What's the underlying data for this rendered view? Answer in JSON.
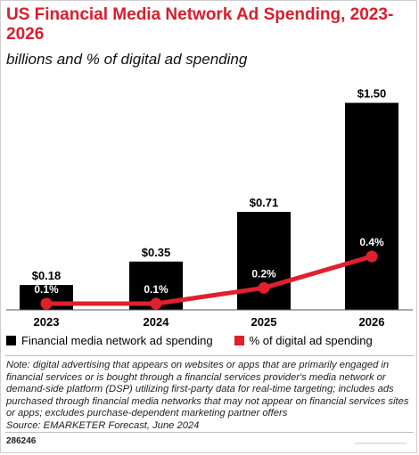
{
  "title": "US Financial Media Network Ad Spending, 2023-2026",
  "subtitle": "billions and % of digital ad spending",
  "chart_data": {
    "type": "bar",
    "categories": [
      "2023",
      "2024",
      "2025",
      "2026"
    ],
    "series": [
      {
        "name": "Financial media network ad spending",
        "type": "bar",
        "values": [
          0.18,
          0.35,
          0.71,
          1.5
        ],
        "labels": [
          "$0.18",
          "$0.35",
          "$0.71",
          "$1.50"
        ],
        "color": "#000000"
      },
      {
        "name": "% of digital ad spending",
        "type": "line",
        "values": [
          0.1,
          0.1,
          0.2,
          0.4
        ],
        "labels": [
          "0.1%",
          "0.1%",
          "0.2%",
          "0.4%"
        ],
        "color": "#e0202e"
      }
    ],
    "ylim": [
      0,
      1.6
    ],
    "y2lim": [
      0,
      1.6
    ],
    "grid": false,
    "legend_position": "bottom"
  },
  "legend": [
    {
      "label": "Financial media network ad spending",
      "color": "#000000"
    },
    {
      "label": "% of digital ad spending",
      "color": "#e0202e"
    }
  ],
  "note": "Note: digital advertising that appears on websites or apps that are primarily engaged in financial services or is bought through a financial services provider's media network or demand-side platform (DSP) utilizing first-party data for real-time targeting; includes ads purchased through financial media networks that may not appear on financial services sites or apps; excludes purchase-dependent marketing partner offers",
  "source": "Source: EMARKETER Forecast, June 2024",
  "chart_id": "286246",
  "colors": {
    "accent": "#d81e2c",
    "bar": "#000000",
    "line": "#e0202e"
  }
}
